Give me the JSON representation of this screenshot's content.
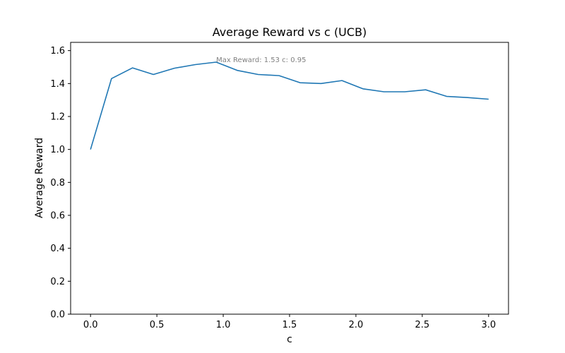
{
  "chart_data": {
    "type": "line",
    "title": "Average Reward vs c (UCB)",
    "xlabel": "c",
    "ylabel": "Average Reward",
    "xlim": [
      -0.15,
      3.15
    ],
    "ylim": [
      0.0,
      1.65
    ],
    "xticks": [
      0.0,
      0.5,
      1.0,
      1.5,
      2.0,
      2.5,
      3.0
    ],
    "xtick_labels": [
      "0.0",
      "0.5",
      "1.0",
      "1.5",
      "2.0",
      "2.5",
      "3.0"
    ],
    "yticks": [
      0.0,
      0.2,
      0.4,
      0.6,
      0.8,
      1.0,
      1.2,
      1.4,
      1.6
    ],
    "ytick_labels": [
      "0.0",
      "0.2",
      "0.4",
      "0.6",
      "0.8",
      "1.0",
      "1.2",
      "1.4",
      "1.6"
    ],
    "grid": false,
    "series": [
      {
        "color": "#1f77b4",
        "x": [
          0.0,
          0.158,
          0.316,
          0.474,
          0.632,
          0.789,
          0.947,
          1.105,
          1.263,
          1.421,
          1.579,
          1.737,
          1.895,
          2.053,
          2.211,
          2.368,
          2.526,
          2.684,
          2.842,
          3.0
        ],
        "y": [
          1.0,
          1.43,
          1.495,
          1.455,
          1.493,
          1.515,
          1.53,
          1.48,
          1.455,
          1.448,
          1.405,
          1.4,
          1.418,
          1.368,
          1.35,
          1.35,
          1.362,
          1.322,
          1.315,
          1.305
        ]
      }
    ],
    "annotation": {
      "text": "Max Reward: 1.53 c: 0.95",
      "x": 0.947,
      "y": 1.53
    }
  }
}
